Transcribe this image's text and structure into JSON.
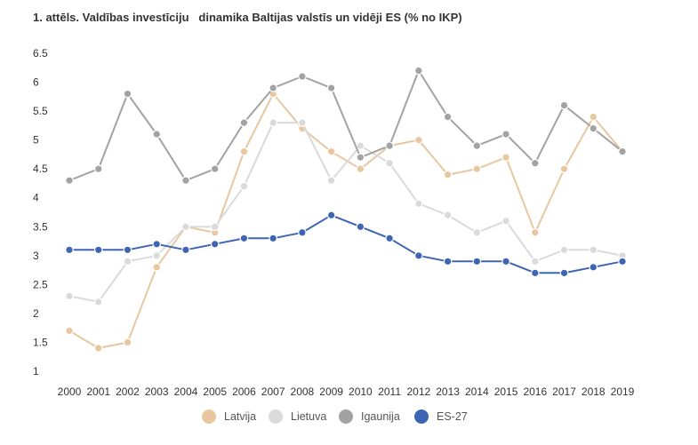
{
  "title": "1. attēls. Valdības investīciju   dinamika Baltijas valstīs un vidēji ES (% no IKP)",
  "legend": {
    "latvija": "Latvija",
    "lietuva": "Lietuva",
    "igaunija": "Igaunija",
    "es27": "ES-27"
  },
  "colors": {
    "latvija": "#e8c7a0",
    "lietuva": "#dadada",
    "igaunija": "#a2a2a2",
    "es27": "#3e65b4"
  },
  "chart_data": {
    "type": "line",
    "x": [
      "2000",
      "2001",
      "2002",
      "2003",
      "2004",
      "2005",
      "2006",
      "2007",
      "2008",
      "2009",
      "2010",
      "2011",
      "2012",
      "2013",
      "2014",
      "2015",
      "2016",
      "2017",
      "2018",
      "2019"
    ],
    "ylim": [
      1,
      6.5
    ],
    "yticks": [
      "1",
      "1.5",
      "2",
      "2.5",
      "3",
      "3.5",
      "4",
      "4.5",
      "5",
      "5.5",
      "6",
      "6.5"
    ],
    "grid": false,
    "legend_position": "bottom",
    "series": [
      {
        "name": "Latvija",
        "key": "latvija",
        "values": [
          1.7,
          1.4,
          1.5,
          2.8,
          3.5,
          3.4,
          4.8,
          5.8,
          5.2,
          4.8,
          4.5,
          4.9,
          5.0,
          4.4,
          4.5,
          4.7,
          3.4,
          4.5,
          5.4,
          4.8
        ]
      },
      {
        "name": "Lietuva",
        "key": "lietuva",
        "values": [
          2.3,
          2.2,
          2.9,
          3.0,
          3.5,
          3.5,
          4.2,
          5.3,
          5.3,
          4.3,
          4.9,
          4.6,
          3.9,
          3.7,
          3.4,
          3.6,
          2.9,
          3.1,
          3.1,
          3.0
        ]
      },
      {
        "name": "Igaunija",
        "key": "igaunija",
        "values": [
          4.3,
          4.5,
          5.8,
          5.1,
          4.3,
          4.5,
          5.3,
          5.9,
          6.1,
          5.9,
          4.7,
          4.9,
          6.2,
          5.4,
          4.9,
          5.1,
          4.6,
          5.6,
          5.2,
          4.8
        ]
      },
      {
        "name": "ES-27",
        "key": "es27",
        "values": [
          3.1,
          3.1,
          3.1,
          3.2,
          3.1,
          3.2,
          3.3,
          3.3,
          3.4,
          3.7,
          3.5,
          3.3,
          3.0,
          2.9,
          2.9,
          2.9,
          2.7,
          2.7,
          2.8,
          2.9
        ]
      }
    ]
  }
}
